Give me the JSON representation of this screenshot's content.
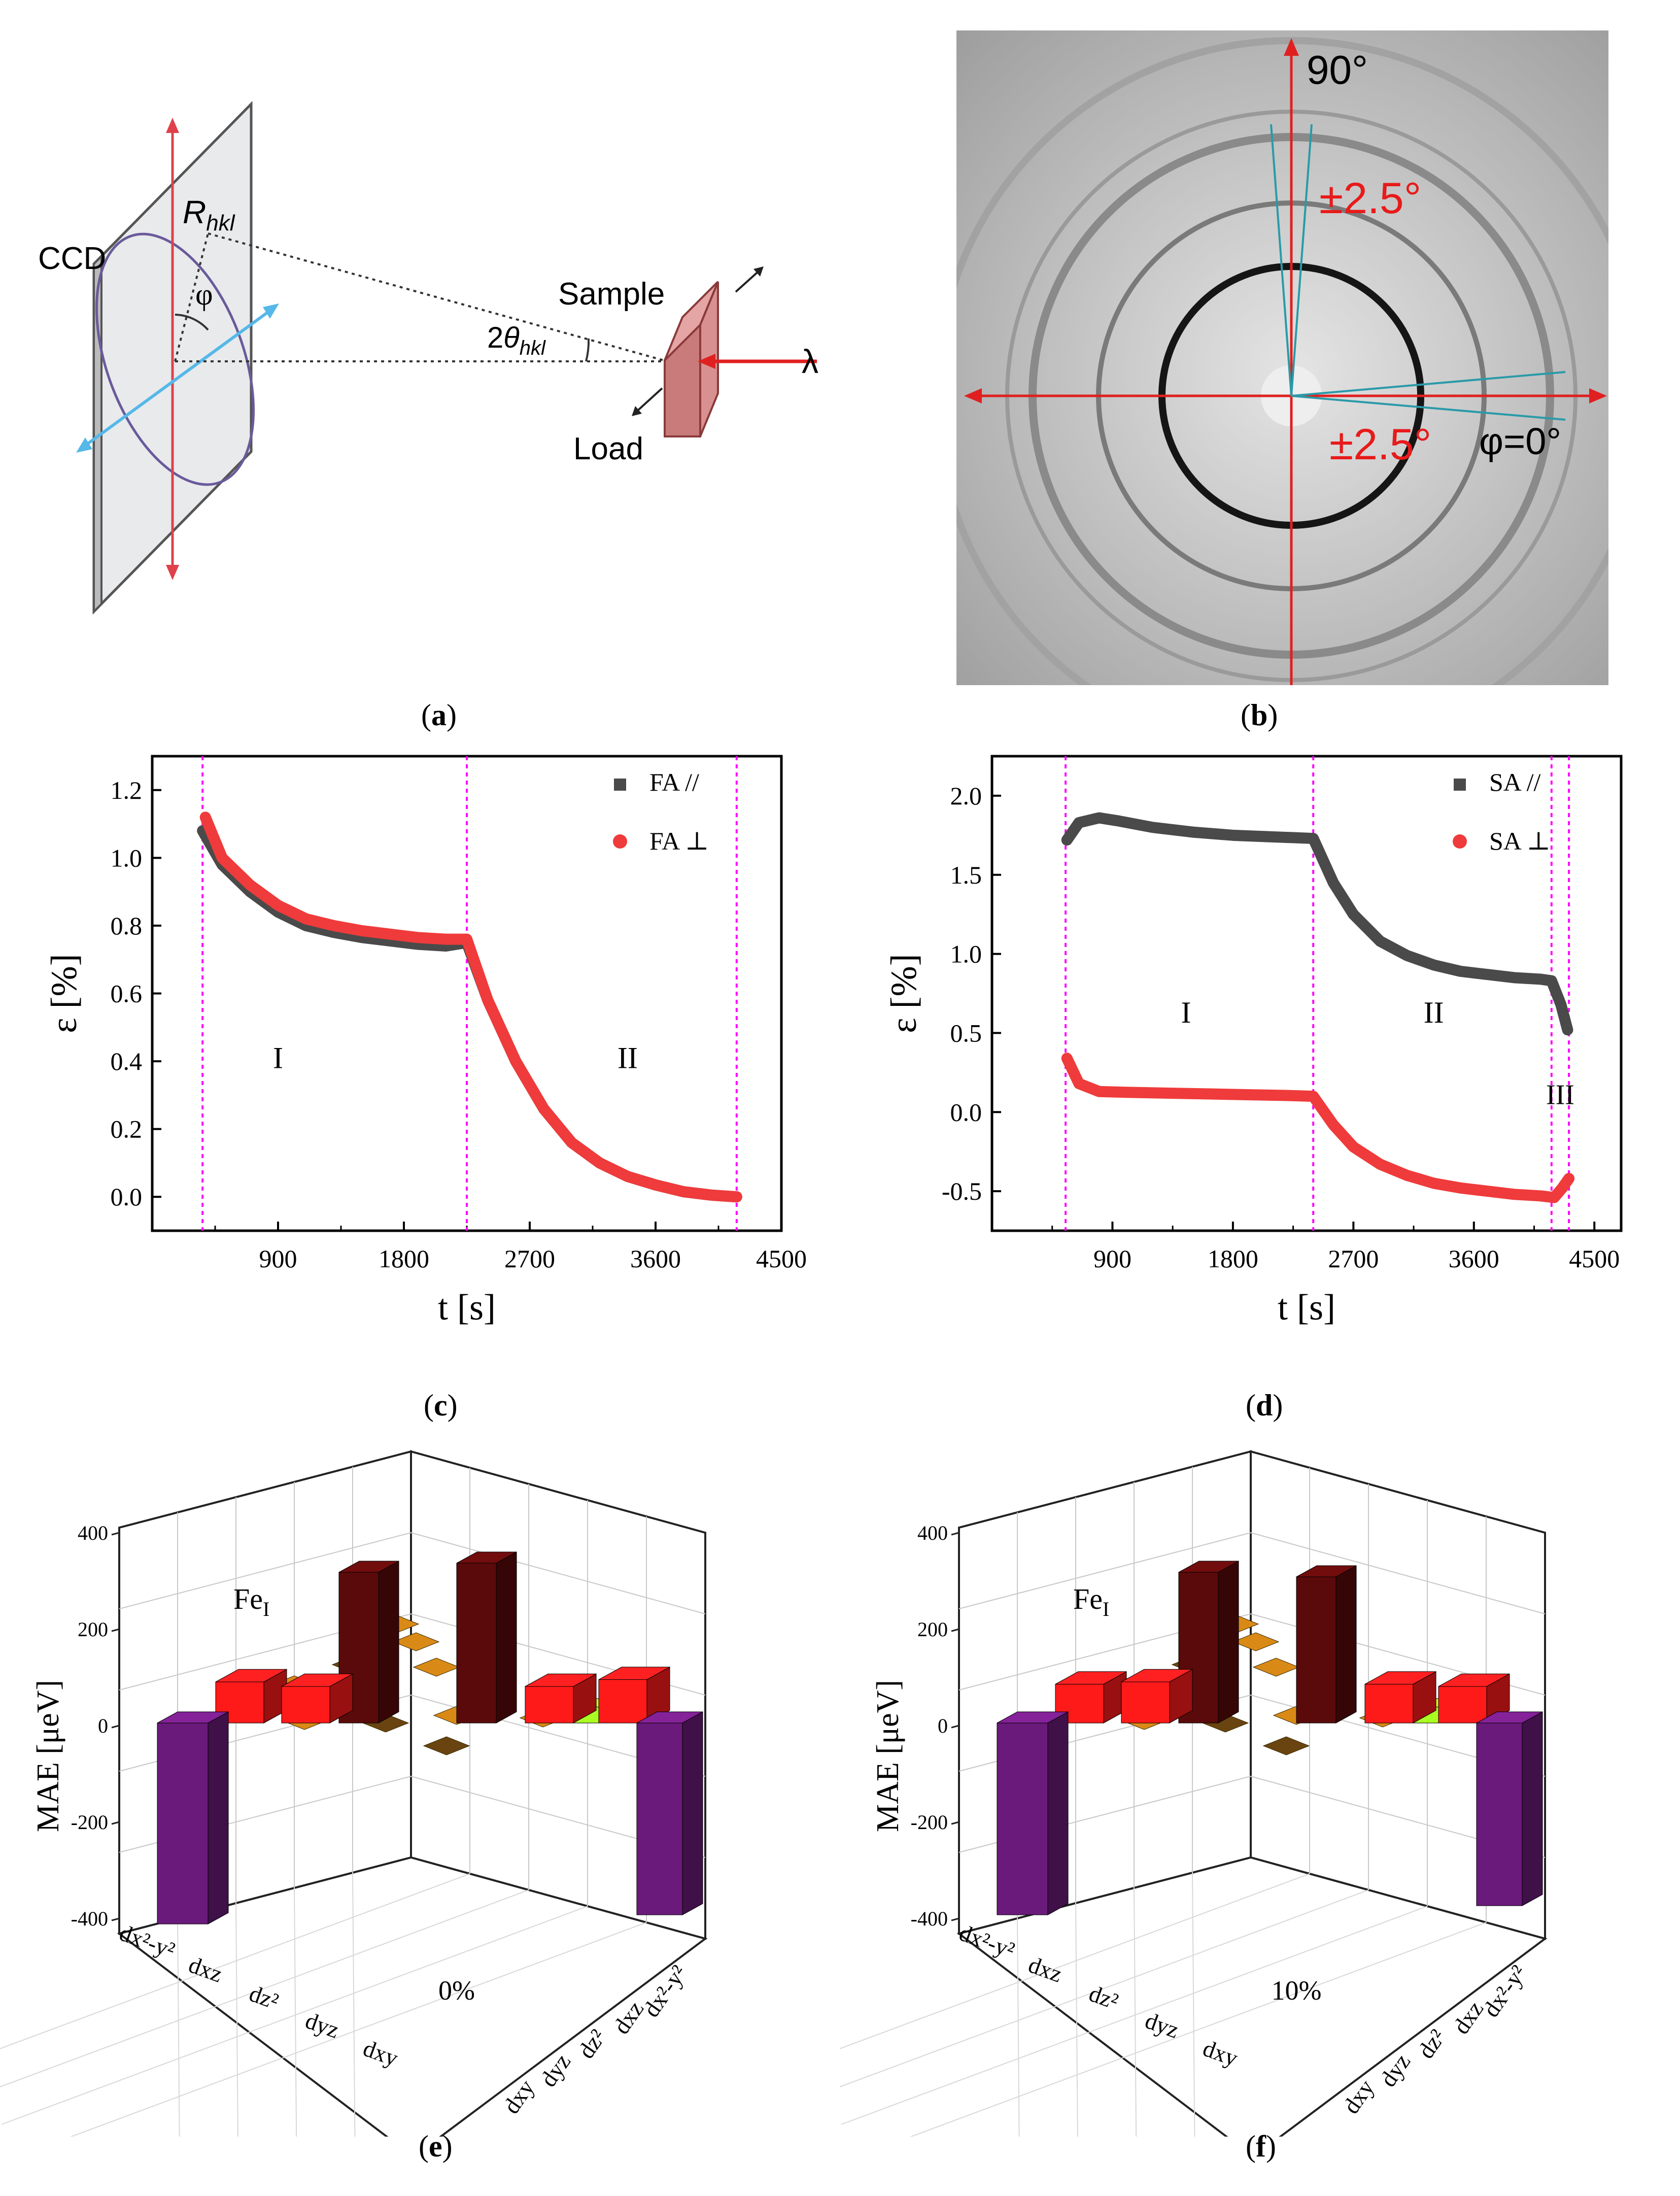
{
  "panel_a": {
    "ccd": "CCD",
    "r": "R",
    "r_sub": "hkl",
    "phi": "φ",
    "two": "2",
    "theta": "θ",
    "theta_sub": "hkl",
    "sample": "Sample",
    "load": "Load",
    "lambda": "λ",
    "caption": "a"
  },
  "panel_b": {
    "deg90": "90°",
    "pm_top": "±2.5°",
    "pm_right": "±2.5°",
    "phi0": "φ=0°",
    "caption": "b"
  },
  "colors": {
    "fa_par": "#4a4a4a",
    "fa_perp": "#ef3b3b",
    "divider": "#ff00ff",
    "red_bar": "#ff1a1a",
    "dark_bar": "#5a0a0a",
    "purple_bar": "#6a1a7a",
    "orange_tile": "#d98a16",
    "dark_tile": "#6a4410",
    "lime": "#aaff22"
  },
  "chart_data": [
    {
      "id": "c",
      "type": "scatter",
      "xlabel": "t [s]",
      "ylabel": "ε [%]",
      "xlim": [
        0,
        4500
      ],
      "ylim": [
        -0.1,
        1.3
      ],
      "xticks": [
        "900",
        "1800",
        "2700",
        "3600",
        "4500"
      ],
      "yticks": [
        "0.0",
        "0.2",
        "0.4",
        "0.6",
        "0.8",
        "1.0",
        "1.2"
      ],
      "legend": [
        "FA //",
        "FA ⊥"
      ],
      "dividers": [
        360,
        2250,
        4180
      ],
      "regions": [
        "I",
        "II"
      ],
      "series": [
        {
          "name": "FA //",
          "x": [
            360,
            500,
            700,
            900,
            1100,
            1300,
            1500,
            1700,
            1900,
            2100,
            2250,
            2400,
            2600,
            2800,
            3000,
            3200,
            3400,
            3600,
            3800,
            4000,
            4180
          ],
          "y": [
            1.08,
            0.98,
            0.9,
            0.84,
            0.8,
            0.78,
            0.765,
            0.755,
            0.745,
            0.74,
            0.75,
            0.58,
            0.4,
            0.26,
            0.16,
            0.1,
            0.06,
            0.035,
            0.015,
            0.005,
            0.0
          ]
        },
        {
          "name": "FA ⊥",
          "x": [
            380,
            500,
            700,
            900,
            1100,
            1300,
            1500,
            1700,
            1900,
            2100,
            2250,
            2400,
            2600,
            2800,
            3000,
            3200,
            3400,
            3600,
            3800,
            4000,
            4180
          ],
          "y": [
            1.12,
            1.0,
            0.92,
            0.86,
            0.82,
            0.8,
            0.785,
            0.775,
            0.765,
            0.76,
            0.76,
            0.58,
            0.4,
            0.26,
            0.16,
            0.1,
            0.06,
            0.035,
            0.015,
            0.005,
            0.0
          ]
        }
      ]
    },
    {
      "id": "d",
      "type": "scatter",
      "xlabel": "t [s]",
      "ylabel": "ε [%]",
      "xlim": [
        0,
        4700
      ],
      "ylim": [
        -0.75,
        2.25
      ],
      "xticks": [
        "900",
        "1800",
        "2700",
        "3600",
        "4500"
      ],
      "yticks": [
        "-0.5",
        "0.0",
        "0.5",
        "1.0",
        "1.5",
        "2.0"
      ],
      "legend": [
        "SA //",
        "SA ⊥"
      ],
      "dividers": [
        550,
        2400,
        4180,
        4310
      ],
      "regions": [
        "I",
        "II",
        "III"
      ],
      "series": [
        {
          "name": "SA //",
          "x": [
            560,
            650,
            800,
            950,
            1200,
            1500,
            1800,
            2100,
            2400,
            2550,
            2700,
            2900,
            3100,
            3300,
            3500,
            3700,
            3900,
            4100,
            4180,
            4250,
            4300
          ],
          "y": [
            1.72,
            1.83,
            1.86,
            1.84,
            1.8,
            1.77,
            1.75,
            1.74,
            1.73,
            1.45,
            1.25,
            1.08,
            0.99,
            0.93,
            0.89,
            0.87,
            0.85,
            0.84,
            0.83,
            0.68,
            0.52
          ]
        },
        {
          "name": "SA ⊥",
          "x": [
            560,
            650,
            800,
            1000,
            1300,
            1600,
            1900,
            2200,
            2400,
            2550,
            2700,
            2900,
            3100,
            3300,
            3500,
            3700,
            3900,
            4100,
            4200,
            4260,
            4310
          ],
          "y": [
            0.34,
            0.18,
            0.13,
            0.125,
            0.12,
            0.115,
            0.11,
            0.105,
            0.1,
            -0.08,
            -0.22,
            -0.33,
            -0.4,
            -0.45,
            -0.48,
            -0.5,
            -0.52,
            -0.53,
            -0.54,
            -0.48,
            -0.42
          ]
        }
      ]
    },
    {
      "id": "e",
      "type": "bar3d",
      "zlabel": "MAE [μeV]",
      "zticks": [
        "400",
        "200",
        "0",
        "-200",
        "-400"
      ],
      "atom": "Fe",
      "atom_sub": "I",
      "strain": "0%",
      "axis_left": [
        "dx²-y²",
        "dxz",
        "dz²",
        "dyz",
        "dxy"
      ],
      "axis_right": [
        "dxy",
        "dyz",
        "dz²",
        "dxz",
        "dx²-y²"
      ],
      "bars": [
        {
          "name": "dark-red-1",
          "value": 330
        },
        {
          "name": "dark-red-2",
          "value": 350
        },
        {
          "name": "red-1",
          "value": 90
        },
        {
          "name": "red-2",
          "value": 80
        },
        {
          "name": "red-3",
          "value": 80
        },
        {
          "name": "red-4",
          "value": 95
        },
        {
          "name": "purple-left",
          "value": -440
        },
        {
          "name": "purple-right",
          "value": -420
        }
      ]
    },
    {
      "id": "f",
      "type": "bar3d",
      "zlabel": "MAE [μeV]",
      "zticks": [
        "400",
        "200",
        "0",
        "-200",
        "-400"
      ],
      "atom": "Fe",
      "atom_sub": "I",
      "strain": "10%",
      "axis_left": [
        "dx²-y²",
        "dxz",
        "dz²",
        "dyz",
        "dxy"
      ],
      "axis_right": [
        "dxy",
        "dyz",
        "dz²",
        "dxz",
        "dx²-y²"
      ],
      "bars": [
        {
          "name": "dark-red-1",
          "value": 330
        },
        {
          "name": "dark-red-2",
          "value": 320
        },
        {
          "name": "red-1",
          "value": 85
        },
        {
          "name": "red-2",
          "value": 90
        },
        {
          "name": "red-3",
          "value": 85
        },
        {
          "name": "red-4",
          "value": 80
        },
        {
          "name": "purple-left",
          "value": -420
        },
        {
          "name": "purple-right",
          "value": -400
        }
      ]
    }
  ]
}
